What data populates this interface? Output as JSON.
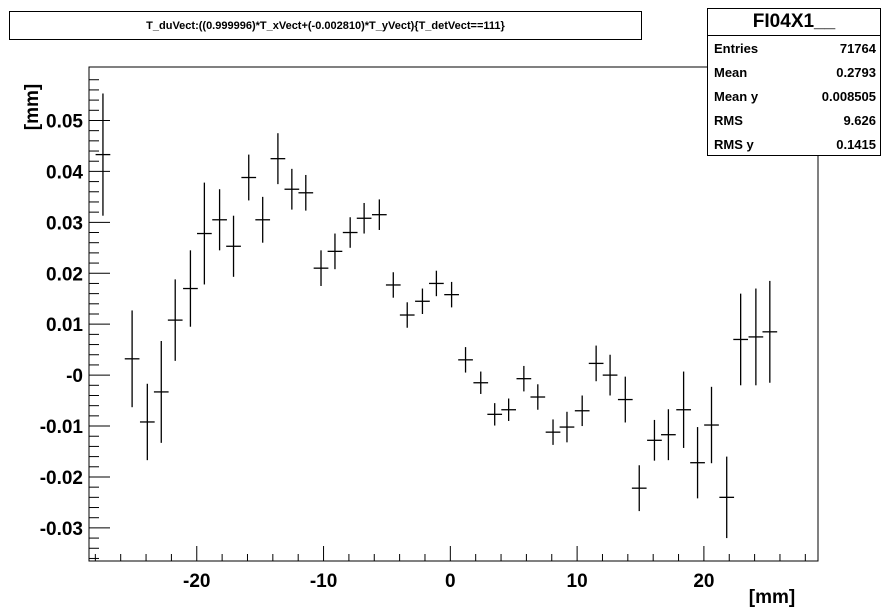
{
  "title": "T_duVect:((0.999996)*T_xVect+(-0.002810)*T_yVect){T_detVect==111}",
  "stats": {
    "name": "FI04X1__",
    "rows": [
      {
        "label": "Entries",
        "value": "71764"
      },
      {
        "label": "Mean",
        "value": "0.2793"
      },
      {
        "label": "Mean y",
        "value": "0.008505"
      },
      {
        "label": "RMS",
        "value": "9.626"
      },
      {
        "label": "RMS y",
        "value": "0.1415"
      }
    ]
  },
  "chart_data": {
    "type": "scatter",
    "style": "profile-with-error-bars",
    "title": "T_duVect:((0.999996)*T_xVect+(-0.002810)*T_yVect){T_detVect==111}",
    "xlabel": "[mm]",
    "ylabel": "[mm]",
    "xlim": [
      -28.5,
      29
    ],
    "ylim": [
      -0.0365,
      0.0605
    ],
    "x_ticks": [
      -20,
      -10,
      0,
      10,
      20
    ],
    "x_tick_labels": [
      "-20",
      "-10",
      "0",
      "10",
      "20"
    ],
    "y_ticks": [
      -0.03,
      -0.02,
      -0.01,
      0,
      0.01,
      0.02,
      0.03,
      0.04,
      0.05
    ],
    "y_tick_labels": [
      "-0.03",
      "-0.02",
      "-0.01",
      "-0",
      "0.01",
      "0.02",
      "0.03",
      "0.04",
      "0.05"
    ],
    "bin_half_width": 0.58,
    "grid": false,
    "points": [
      {
        "x": -27.4,
        "y": 0.0433,
        "err": 0.012
      },
      {
        "x": -25.1,
        "y": 0.0032,
        "err": 0.0095
      },
      {
        "x": -23.9,
        "y": -0.0092,
        "err": 0.0075
      },
      {
        "x": -22.8,
        "y": -0.0033,
        "err": 0.01
      },
      {
        "x": -21.7,
        "y": 0.0108,
        "err": 0.008
      },
      {
        "x": -20.5,
        "y": 0.017,
        "err": 0.0075
      },
      {
        "x": -19.4,
        "y": 0.0278,
        "err": 0.01
      },
      {
        "x": -18.2,
        "y": 0.0305,
        "err": 0.006
      },
      {
        "x": -17.1,
        "y": 0.0253,
        "err": 0.006
      },
      {
        "x": -15.9,
        "y": 0.0388,
        "err": 0.0045
      },
      {
        "x": -14.8,
        "y": 0.0305,
        "err": 0.0045
      },
      {
        "x": -13.6,
        "y": 0.0425,
        "err": 0.005
      },
      {
        "x": -12.5,
        "y": 0.0365,
        "err": 0.004
      },
      {
        "x": -11.4,
        "y": 0.0358,
        "err": 0.0035
      },
      {
        "x": -10.2,
        "y": 0.021,
        "err": 0.0035
      },
      {
        "x": -9.1,
        "y": 0.0243,
        "err": 0.0035
      },
      {
        "x": -7.9,
        "y": 0.028,
        "err": 0.003
      },
      {
        "x": -6.8,
        "y": 0.0308,
        "err": 0.003
      },
      {
        "x": -5.6,
        "y": 0.0315,
        "err": 0.003
      },
      {
        "x": -4.5,
        "y": 0.0177,
        "err": 0.0025
      },
      {
        "x": -3.4,
        "y": 0.0118,
        "err": 0.0025
      },
      {
        "x": -2.2,
        "y": 0.0145,
        "err": 0.0025
      },
      {
        "x": -1.1,
        "y": 0.018,
        "err": 0.0025
      },
      {
        "x": 0.1,
        "y": 0.0158,
        "err": 0.0025
      },
      {
        "x": 1.2,
        "y": 0.003,
        "err": 0.0025
      },
      {
        "x": 2.4,
        "y": -0.0015,
        "err": 0.0022
      },
      {
        "x": 3.5,
        "y": -0.0077,
        "err": 0.0022
      },
      {
        "x": 4.6,
        "y": -0.0068,
        "err": 0.0022
      },
      {
        "x": 5.8,
        "y": -0.0007,
        "err": 0.0025
      },
      {
        "x": 6.9,
        "y": -0.0043,
        "err": 0.0025
      },
      {
        "x": 8.1,
        "y": -0.0112,
        "err": 0.0025
      },
      {
        "x": 9.2,
        "y": -0.0102,
        "err": 0.003
      },
      {
        "x": 10.4,
        "y": -0.007,
        "err": 0.003
      },
      {
        "x": 11.5,
        "y": 0.0023,
        "err": 0.0035
      },
      {
        "x": 12.6,
        "y": 0.0,
        "err": 0.004
      },
      {
        "x": 13.8,
        "y": -0.0048,
        "err": 0.0045
      },
      {
        "x": 14.9,
        "y": -0.0222,
        "err": 0.0045
      },
      {
        "x": 16.1,
        "y": -0.0128,
        "err": 0.004
      },
      {
        "x": 17.2,
        "y": -0.0117,
        "err": 0.005
      },
      {
        "x": 18.4,
        "y": -0.0068,
        "err": 0.0075
      },
      {
        "x": 19.5,
        "y": -0.0172,
        "err": 0.007
      },
      {
        "x": 20.6,
        "y": -0.0098,
        "err": 0.0075
      },
      {
        "x": 21.8,
        "y": -0.024,
        "err": 0.008
      },
      {
        "x": 22.9,
        "y": 0.007,
        "err": 0.009
      },
      {
        "x": 24.1,
        "y": 0.0075,
        "err": 0.0095
      },
      {
        "x": 25.2,
        "y": 0.0085,
        "err": 0.01
      }
    ]
  }
}
